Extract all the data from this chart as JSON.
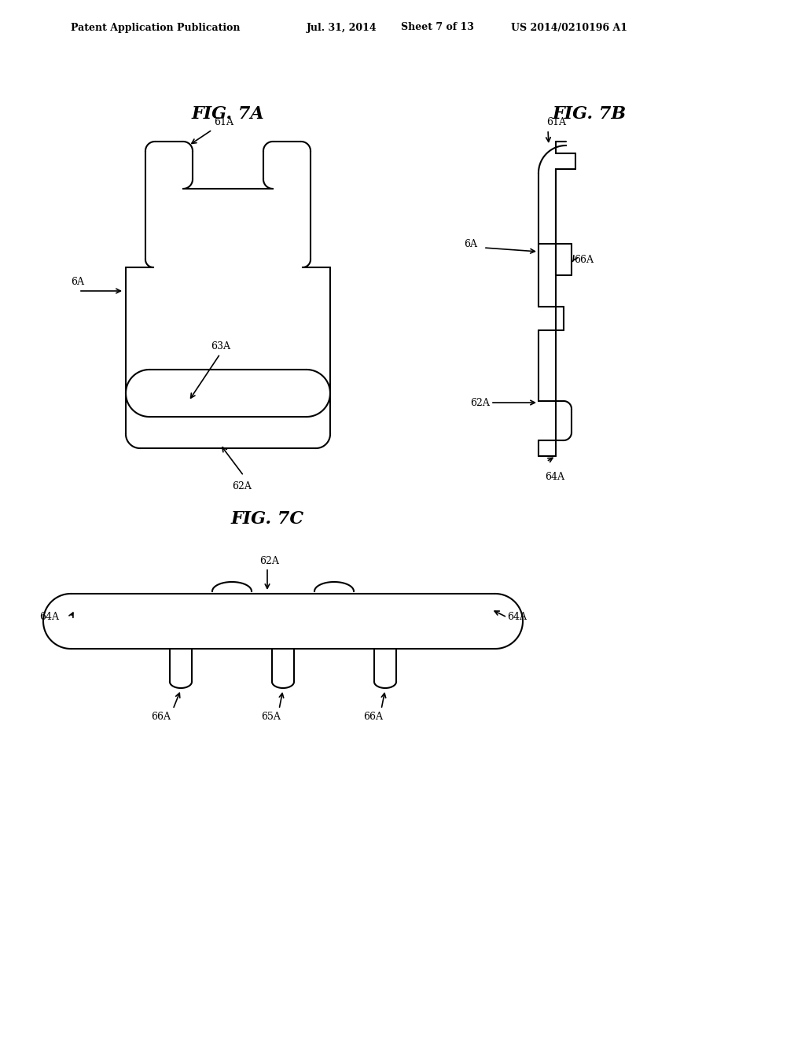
{
  "background_color": "#ffffff",
  "header_text": "Patent Application Publication",
  "header_date": "Jul. 31, 2014",
  "header_sheet": "Sheet 7 of 13",
  "header_patent": "US 2014/0210196 A1",
  "fig7a_title": "FIG. 7A",
  "fig7b_title": "FIG. 7B",
  "fig7c_title": "FIG. 7C",
  "line_color": "#000000",
  "line_width": 1.5
}
